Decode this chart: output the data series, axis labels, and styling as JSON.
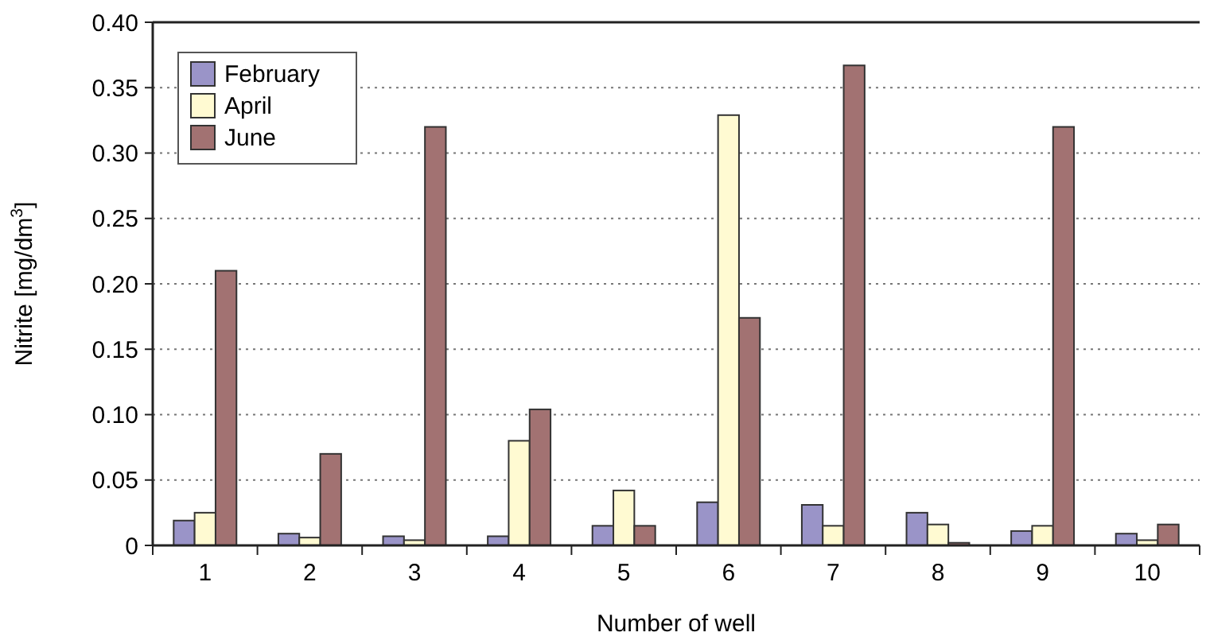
{
  "chart_data": {
    "type": "bar",
    "xlabel": "Number of well",
    "ylabel": "Nitrite [mg/dm$^{3}$]",
    "categories": [
      "1",
      "2",
      "3",
      "4",
      "5",
      "6",
      "7",
      "8",
      "9",
      "10"
    ],
    "series": [
      {
        "name": "February",
        "color": "#9a94c8",
        "values": [
          0.019,
          0.009,
          0.007,
          0.007,
          0.015,
          0.033,
          0.031,
          0.025,
          0.011,
          0.009
        ]
      },
      {
        "name": "April",
        "color": "#fffad2",
        "values": [
          0.025,
          0.006,
          0.004,
          0.08,
          0.042,
          0.329,
          0.015,
          0.016,
          0.015,
          0.004
        ]
      },
      {
        "name": "June",
        "color": "#a27272",
        "values": [
          0.21,
          0.07,
          0.32,
          0.104,
          0.015,
          0.174,
          0.367,
          0.002,
          0.32,
          0.016
        ]
      }
    ],
    "ylim": [
      0,
      0.4
    ],
    "yticks": [
      0,
      0.05,
      {
        "value": 0.1,
        "label": "0.10"
      },
      0.15,
      {
        "value": 0.2,
        "label": "0.20"
      },
      0.25,
      {
        "value": 0.3,
        "label": "0.30"
      },
      0.35,
      {
        "value": 0.4,
        "label": "0.40"
      }
    ],
    "grid": "y",
    "legend": "top left"
  }
}
